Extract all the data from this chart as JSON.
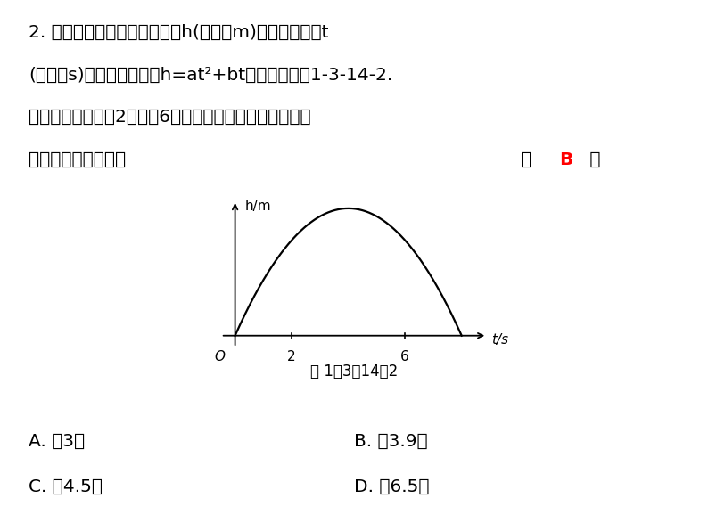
{
  "background_color": "#ffffff",
  "text_color": "#000000",
  "title_line1": "2. 竖直向上发射的小球的高度h(单位：m)关于运动时间t",
  "title_line2": "(单位：s)的函数表达式为h=at²+bt，其图象如图1-3-14-2.",
  "title_line3": "若小球在发射后第2秒与第6秒时的高度相等，则下列时刻",
  "title_line4": "小球的高度最高的是",
  "answer_color": "#FF0000",
  "answer_letter": "B",
  "fig_label": "图 1－3－14－2",
  "options": [
    "A. 第3秒",
    "B. 第3.9秒",
    "C. 第4.5秒",
    "D. 第6.5秒"
  ],
  "curve_color": "#000000",
  "x_ticks": [
    2,
    6
  ],
  "xlabel": "t/s",
  "ylabel": "h/m"
}
